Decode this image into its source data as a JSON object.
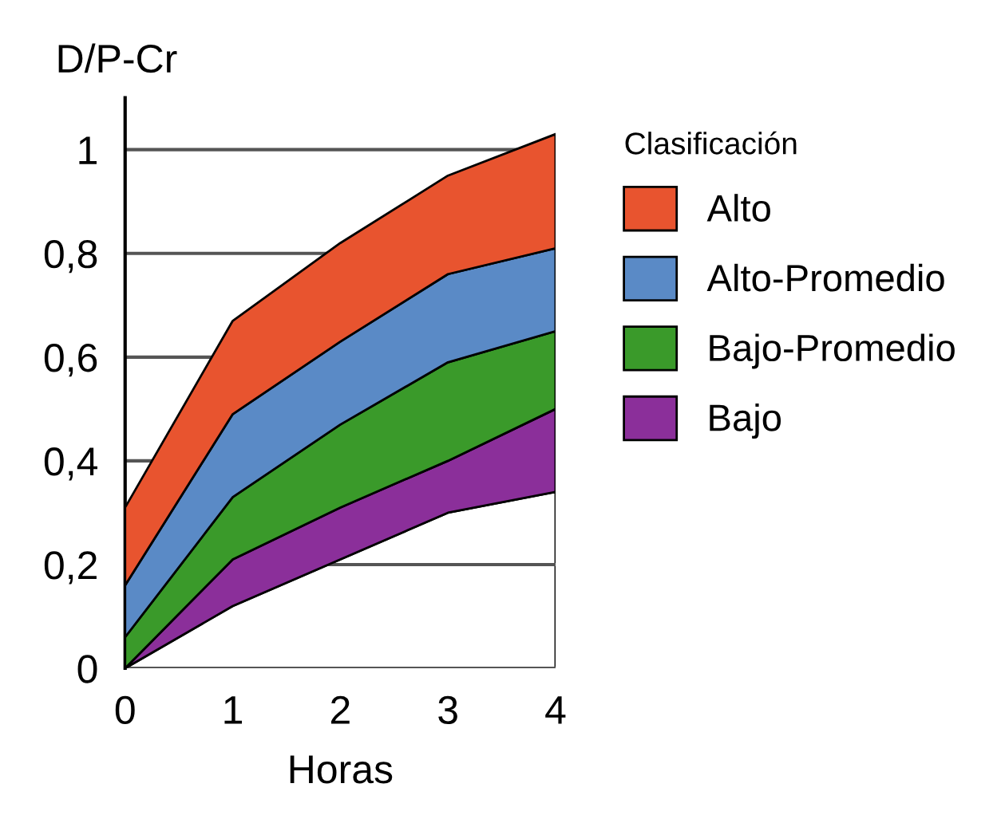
{
  "chart_data": {
    "type": "area",
    "stacked": true,
    "ylabel": "D/P-Cr",
    "xlabel": "Horas",
    "legend_title": "Clasificación",
    "x": [
      0,
      1,
      2,
      3,
      4
    ],
    "xlim": [
      0,
      4
    ],
    "xticks": [
      0,
      1,
      2,
      3,
      4
    ],
    "ylim": [
      0,
      1.1
    ],
    "yticks": [
      0,
      {
        "value": 0.2,
        "label": "0,2"
      },
      {
        "value": 0.4,
        "label": "0,4"
      },
      {
        "value": 0.6,
        "label": "0,6"
      },
      {
        "value": 0.8,
        "label": "0,8"
      },
      1
    ],
    "grid": "y",
    "legend": "right",
    "series": [
      {
        "color": "#ffffff",
        "values": [
          0,
          0.12,
          0.21,
          0.3,
          0.34
        ]
      },
      {
        "name": "Bajo",
        "color": "#8b2f9a",
        "values": [
          0,
          0.09,
          0.1,
          0.1,
          0.16
        ]
      },
      {
        "name": "Bajo-Promedio",
        "color": "#3a9a2a",
        "values": [
          0.06,
          0.12,
          0.16,
          0.19,
          0.15
        ]
      },
      {
        "name": "Alto-Promedio",
        "color": "#5a8ac6",
        "values": [
          0.1,
          0.16,
          0.16,
          0.17,
          0.16
        ]
      },
      {
        "name": "Alto",
        "color": "#e8542f",
        "values": [
          0.15,
          0.18,
          0.19,
          0.19,
          0.22
        ]
      }
    ]
  }
}
